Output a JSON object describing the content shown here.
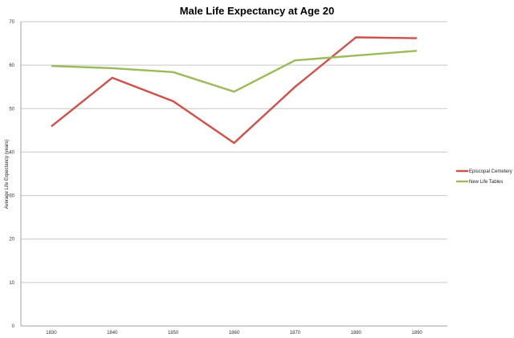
{
  "chart_data": {
    "type": "line",
    "title": "Male Life Expectancy at Age 20",
    "xlabel": "",
    "ylabel": "Average Life Expectancy (years)",
    "categories": [
      "1830",
      "1840",
      "1850",
      "1860",
      "1870",
      "1880",
      "1890"
    ],
    "ylim": [
      0,
      70
    ],
    "yticks": [
      0,
      10,
      20,
      30,
      40,
      50,
      60,
      70
    ],
    "grid": true,
    "legend_position": "right",
    "series": [
      {
        "name": "Episcopal Cemetery",
        "color": "#d0504a",
        "values": [
          45.9,
          57.1,
          51.7,
          42.1,
          55.0,
          66.4,
          66.2
        ]
      },
      {
        "name": "New Life Tables",
        "color": "#9bbb59",
        "values": [
          59.8,
          59.3,
          58.4,
          53.9,
          61.1,
          62.2,
          63.3
        ]
      }
    ]
  }
}
